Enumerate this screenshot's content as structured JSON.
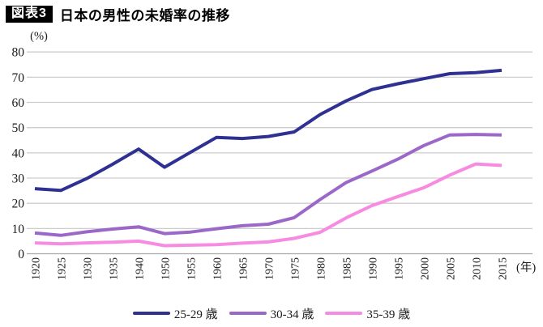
{
  "title": {
    "badge": "図表3",
    "text": "日本の男性の未婚率の推移"
  },
  "colors": {
    "grid": "#cdcdcd",
    "axis": "#a8a8a8",
    "badge_bg": "#000000",
    "badge_fg": "#ffffff",
    "tick_text": "#1c1c1c"
  },
  "chart_data": {
    "type": "line",
    "title": "日本の男性の未婚率の推移",
    "xlabel": "(年)",
    "ylabel": "(%)",
    "ylim": [
      0,
      80
    ],
    "y_ticks": [
      0,
      10,
      20,
      30,
      40,
      50,
      60,
      70,
      80
    ],
    "grid": "horizontal",
    "legend_position": "bottom",
    "x_tick_rotation": -90,
    "categories": [
      "1920",
      "1925",
      "1930",
      "1935",
      "1940",
      "1950",
      "1955",
      "1960",
      "1965",
      "1970",
      "1975",
      "1980",
      "1985",
      "1990",
      "1995",
      "2000",
      "2005",
      "2010",
      "2015"
    ],
    "series": [
      {
        "name": "25-29 歳",
        "color": "#2e3191",
        "values": [
          25.8,
          25.1,
          29.8,
          35.5,
          41.5,
          34.3,
          40.2,
          46.1,
          45.7,
          46.5,
          48.3,
          55.2,
          60.6,
          65.1,
          67.4,
          69.4,
          71.4,
          71.8,
          72.7
        ]
      },
      {
        "name": "30-34 歳",
        "color": "#9b68c9",
        "values": [
          8.2,
          7.3,
          8.7,
          9.8,
          10.7,
          8.0,
          8.6,
          9.9,
          11.1,
          11.7,
          14.3,
          21.5,
          28.2,
          32.8,
          37.5,
          42.9,
          47.1,
          47.3,
          47.1
        ]
      },
      {
        "name": "35-39 歳",
        "color": "#f78be2",
        "values": [
          4.3,
          3.9,
          4.3,
          4.6,
          5.0,
          3.2,
          3.4,
          3.6,
          4.2,
          4.7,
          6.1,
          8.5,
          14.2,
          19.1,
          22.7,
          26.2,
          31.2,
          35.6,
          35.0
        ]
      }
    ]
  }
}
